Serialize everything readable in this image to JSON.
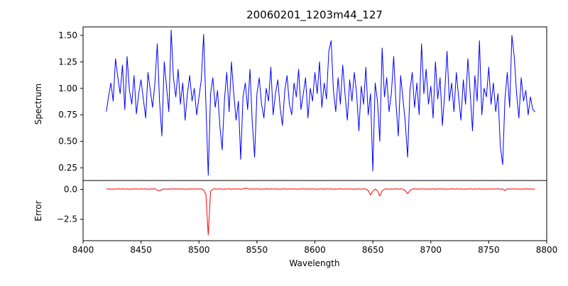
{
  "chart_data": {
    "type": "line",
    "title": "20060201_1203m44_127",
    "xlabel": "Wavelength",
    "grid": false,
    "legend": "none",
    "xlim": [
      8400,
      8800
    ],
    "x_ticks": [
      8400,
      8450,
      8500,
      8550,
      8600,
      8650,
      8700,
      8750,
      8800
    ],
    "x_start": 8420,
    "x_step": 2,
    "panels": [
      {
        "name": "spectrum",
        "ylabel": "Spectrum",
        "color": "#0000ff",
        "ylim": [
          0.13,
          1.58
        ],
        "y_ticks": [
          {
            "v": 0.25,
            "label": "0.25"
          },
          {
            "v": 0.5,
            "label": "0.50"
          },
          {
            "v": 0.75,
            "label": "0.75"
          },
          {
            "v": 1.0,
            "label": "1.00"
          },
          {
            "v": 1.25,
            "label": "1.25"
          },
          {
            "v": 1.5,
            "label": "1.50"
          }
        ],
        "values": [
          0.78,
          0.92,
          1.05,
          0.88,
          1.28,
          1.1,
          0.95,
          1.22,
          0.8,
          1.3,
          0.98,
          0.85,
          1.12,
          0.76,
          0.95,
          1.08,
          0.9,
          0.72,
          1.15,
          0.98,
          0.82,
          1.05,
          1.42,
          0.88,
          0.55,
          1.25,
          1.02,
          0.78,
          1.55,
          1.1,
          0.92,
          1.18,
          0.85,
          1.05,
          0.7,
          0.95,
          1.12,
          0.88,
          1.0,
          0.75,
          0.92,
          1.08,
          1.51,
          0.85,
          0.18,
          0.95,
          1.1,
          0.82,
          0.98,
          0.65,
          0.42,
          0.9,
          1.15,
          0.78,
          1.25,
          0.95,
          0.7,
          0.88,
          0.33,
          0.92,
          1.05,
          0.8,
          1.18,
          0.68,
          0.35,
          0.95,
          1.1,
          0.85,
          0.72,
          1.0,
          0.88,
          1.2,
          0.75,
          0.95,
          1.08,
          0.82,
          0.65,
          0.98,
          1.12,
          0.85,
          0.75,
          1.05,
          0.92,
          1.18,
          0.8,
          0.95,
          1.1,
          0.72,
          1.0,
          0.88,
          1.15,
          0.95,
          1.25,
          0.82,
          1.05,
          0.9,
          1.35,
          1.45,
          0.98,
          0.78,
          1.1,
          0.85,
          1.22,
          0.95,
          0.7,
          1.08,
          0.88,
          1.15,
          0.95,
          0.6,
          1.02,
          0.85,
          1.2,
          0.75,
          0.95,
          0.22,
          1.05,
          0.88,
          0.5,
          1.38,
          0.92,
          1.1,
          0.78,
          0.95,
          1.3,
          0.85,
          0.55,
          1.12,
          0.9,
          0.68,
          0.35,
          0.98,
          1.15,
          0.82,
          1.05,
          0.75,
          1.42,
          0.95,
          1.18,
          0.85,
          1.02,
          0.72,
          1.25,
          0.9,
          1.1,
          0.65,
          0.95,
          1.35,
          0.88,
          1.05,
          0.78,
          1.15,
          0.92,
          0.7,
          1.08,
          0.85,
          1.28,
          0.95,
          0.6,
          1.12,
          0.88,
          1.45,
          0.75,
          1.0,
          0.92,
          1.2,
          0.85,
          1.05,
          0.78,
          0.95,
          0.45,
          0.28,
          0.9,
          1.15,
          0.82,
          1.5,
          1.3,
          0.95,
          0.72,
          1.1,
          0.88,
          0.98,
          0.75,
          0.92,
          0.8,
          0.78
        ]
      },
      {
        "name": "error",
        "ylabel": "Error",
        "color": "#ff0000",
        "ylim": [
          -4.3,
          0.75
        ],
        "y_ticks": [
          {
            "v": 0.0,
            "label": "0.0"
          },
          {
            "v": -2.5,
            "label": "−2.5"
          }
        ],
        "values": [
          0.03,
          0.05,
          0.02,
          0.04,
          0.03,
          0.06,
          0.02,
          0.05,
          0.03,
          0.05,
          0.02,
          0.04,
          0.03,
          0.06,
          0.02,
          0.05,
          0.03,
          0.05,
          0.02,
          0.04,
          0.03,
          0.06,
          -0.05,
          -0.12,
          0.0,
          0.05,
          0.02,
          0.04,
          0.03,
          0.06,
          0.02,
          0.05,
          0.03,
          0.05,
          0.02,
          0.04,
          0.03,
          0.06,
          0.02,
          0.05,
          0.03,
          0.05,
          -0.05,
          -0.4,
          -3.8,
          -0.15,
          0.02,
          0.05,
          0.03,
          0.05,
          0.02,
          0.04,
          0.03,
          0.06,
          0.02,
          0.05,
          0.03,
          0.05,
          0.02,
          0.04,
          0.1,
          0.08,
          0.02,
          0.05,
          0.03,
          0.05,
          0.02,
          0.04,
          0.03,
          0.06,
          0.02,
          0.05,
          0.03,
          0.05,
          0.02,
          0.04,
          0.03,
          0.06,
          0.02,
          0.05,
          0.03,
          0.05,
          0.02,
          0.04,
          0.03,
          0.06,
          0.02,
          0.05,
          0.03,
          0.05,
          0.02,
          0.04,
          0.03,
          0.06,
          0.02,
          0.05,
          0.03,
          0.05,
          0.02,
          0.04,
          0.03,
          0.06,
          0.02,
          0.05,
          0.03,
          0.05,
          0.02,
          0.04,
          0.03,
          0.06,
          0.02,
          0.05,
          0.03,
          -0.1,
          -0.45,
          -0.15,
          0.04,
          -0.1,
          -0.55,
          -0.12,
          0.03,
          0.05,
          0.02,
          0.04,
          0.03,
          0.06,
          0.02,
          0.05,
          0.03,
          -0.1,
          -0.35,
          -0.08,
          0.03,
          0.06,
          0.02,
          0.05,
          0.03,
          0.05,
          0.02,
          0.04,
          0.03,
          0.06,
          0.02,
          0.05,
          0.03,
          0.05,
          0.02,
          0.04,
          0.03,
          0.06,
          0.02,
          0.05,
          0.03,
          0.05,
          0.02,
          0.04,
          0.03,
          0.06,
          0.02,
          0.05,
          0.03,
          0.05,
          0.02,
          0.04,
          0.03,
          0.06,
          0.02,
          0.05,
          0.03,
          0.05,
          0.02,
          0.04,
          -0.1,
          0.06,
          0.02,
          0.05,
          0.03,
          0.05,
          0.02,
          0.04,
          0.03,
          0.06,
          0.02,
          0.05,
          0.03,
          0.04
        ]
      }
    ]
  }
}
